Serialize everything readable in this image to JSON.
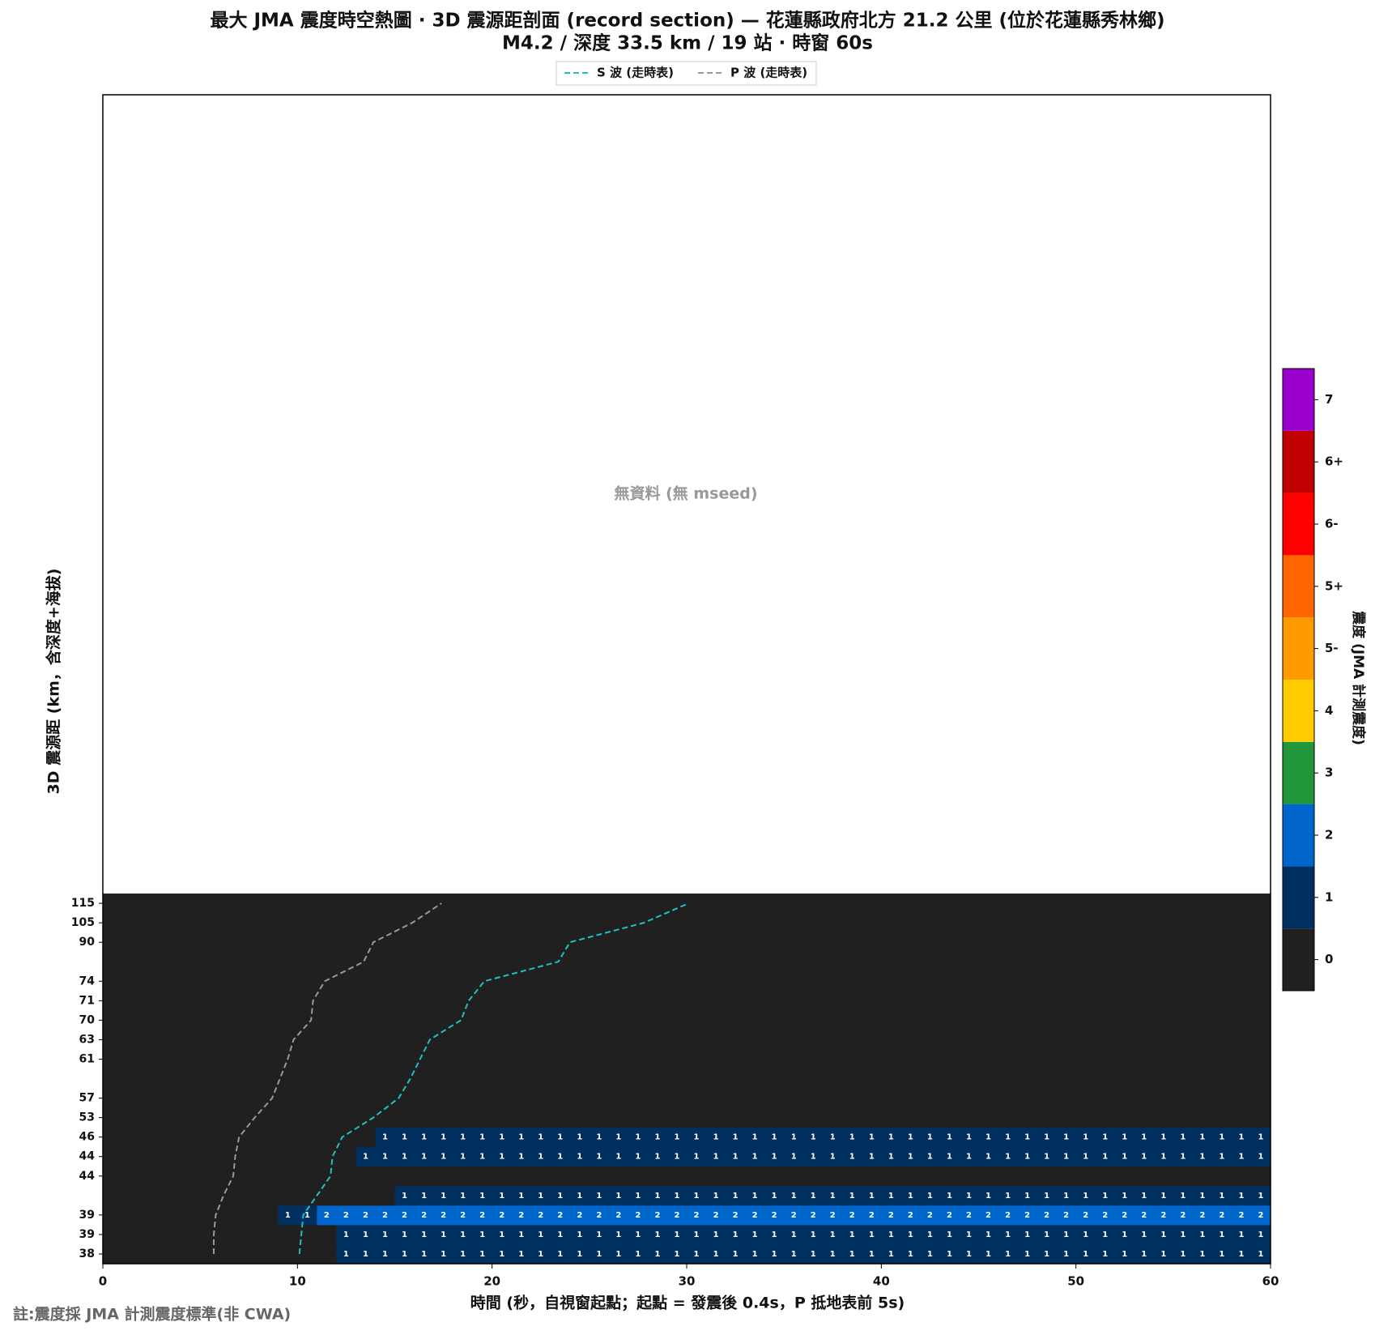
{
  "chart_data": {
    "type": "heatmap",
    "title": "最大 JMA 震度時空熱圖 · 3D 震源距剖面 (record section) — 花蓮縣政府北方  21.2  公里 (位於花蓮縣秀林鄉)",
    "subtitle": "M4.2 / 深度 33.5 km / 19 站 · 時窗 60s",
    "no_data_text": "無資料 (無 mseed)",
    "x_label": "時間 (秒，自視窗起點；起點 = 發震後 0.4s，P 抵地表前 5s)",
    "y_label": "3D 震源距 (km，含深度+海拔)",
    "footnote": "註:震度採 JMA 計測震度標準(非 CWA)",
    "xlim": [
      0,
      60
    ],
    "xticks": [
      0,
      10,
      20,
      30,
      40,
      50,
      60
    ],
    "categories": [
      "38",
      "39",
      "39",
      null,
      "44",
      "44",
      "46",
      "53",
      "57",
      null,
      "61",
      "63",
      "70",
      "71",
      "74",
      null,
      "90",
      "105",
      "115"
    ],
    "matrix": [
      [
        0,
        0,
        0,
        0,
        0,
        0,
        0,
        0,
        0,
        0,
        0,
        0,
        1,
        1,
        1,
        1,
        1,
        1,
        1,
        1,
        1,
        1,
        1,
        1,
        1,
        1,
        1,
        1,
        1,
        1,
        1,
        1,
        1,
        1,
        1,
        1,
        1,
        1,
        1,
        1,
        1,
        1,
        1,
        1,
        1,
        1,
        1,
        1,
        1,
        1,
        1,
        1,
        1,
        1,
        1,
        1,
        1,
        1,
        1,
        1
      ],
      [
        0,
        0,
        0,
        0,
        0,
        0,
        0,
        0,
        0,
        0,
        0,
        0,
        1,
        1,
        1,
        1,
        1,
        1,
        1,
        1,
        1,
        1,
        1,
        1,
        1,
        1,
        1,
        1,
        1,
        1,
        1,
        1,
        1,
        1,
        1,
        1,
        1,
        1,
        1,
        1,
        1,
        1,
        1,
        1,
        1,
        1,
        1,
        1,
        1,
        1,
        1,
        1,
        1,
        1,
        1,
        1,
        1,
        1,
        1,
        1
      ],
      [
        0,
        0,
        0,
        0,
        0,
        0,
        0,
        0,
        0,
        1,
        1,
        2,
        2,
        2,
        2,
        2,
        2,
        2,
        2,
        2,
        2,
        2,
        2,
        2,
        2,
        2,
        2,
        2,
        2,
        2,
        2,
        2,
        2,
        2,
        2,
        2,
        2,
        2,
        2,
        2,
        2,
        2,
        2,
        2,
        2,
        2,
        2,
        2,
        2,
        2,
        2,
        2,
        2,
        2,
        2,
        2,
        2,
        2,
        2,
        2
      ],
      [
        0,
        0,
        0,
        0,
        0,
        0,
        0,
        0,
        0,
        0,
        0,
        0,
        0,
        0,
        0,
        1,
        1,
        1,
        1,
        1,
        1,
        1,
        1,
        1,
        1,
        1,
        1,
        1,
        1,
        1,
        1,
        1,
        1,
        1,
        1,
        1,
        1,
        1,
        1,
        1,
        1,
        1,
        1,
        1,
        1,
        1,
        1,
        1,
        1,
        1,
        1,
        1,
        1,
        1,
        1,
        1,
        1,
        1,
        1,
        1
      ],
      [
        0,
        0,
        0,
        0,
        0,
        0,
        0,
        0,
        0,
        0,
        0,
        0,
        0,
        0,
        0,
        0,
        0,
        0,
        0,
        0,
        0,
        0,
        0,
        0,
        0,
        0,
        0,
        0,
        0,
        0,
        0,
        0,
        0,
        0,
        0,
        0,
        0,
        0,
        0,
        0,
        0,
        0,
        0,
        0,
        0,
        0,
        0,
        0,
        0,
        0,
        0,
        0,
        0,
        0,
        0,
        0,
        0,
        0,
        0,
        0
      ],
      [
        0,
        0,
        0,
        0,
        0,
        0,
        0,
        0,
        0,
        0,
        0,
        0,
        0,
        1,
        1,
        1,
        1,
        1,
        1,
        1,
        1,
        1,
        1,
        1,
        1,
        1,
        1,
        1,
        1,
        1,
        1,
        1,
        1,
        1,
        1,
        1,
        1,
        1,
        1,
        1,
        1,
        1,
        1,
        1,
        1,
        1,
        1,
        1,
        1,
        1,
        1,
        1,
        1,
        1,
        1,
        1,
        1,
        1,
        1,
        1
      ],
      [
        0,
        0,
        0,
        0,
        0,
        0,
        0,
        0,
        0,
        0,
        0,
        0,
        0,
        0,
        1,
        1,
        1,
        1,
        1,
        1,
        1,
        1,
        1,
        1,
        1,
        1,
        1,
        1,
        1,
        1,
        1,
        1,
        1,
        1,
        1,
        1,
        1,
        1,
        1,
        1,
        1,
        1,
        1,
        1,
        1,
        1,
        1,
        1,
        1,
        1,
        1,
        1,
        1,
        1,
        1,
        1,
        1,
        1,
        1,
        1
      ],
      [
        0,
        0,
        0,
        0,
        0,
        0,
        0,
        0,
        0,
        0,
        0,
        0,
        0,
        0,
        0,
        0,
        0,
        0,
        0,
        0,
        0,
        0,
        0,
        0,
        0,
        0,
        0,
        0,
        0,
        0,
        0,
        0,
        0,
        0,
        0,
        0,
        0,
        0,
        0,
        0,
        0,
        0,
        0,
        0,
        0,
        0,
        0,
        0,
        0,
        0,
        0,
        0,
        0,
        0,
        0,
        0,
        0,
        0,
        0,
        0
      ],
      [
        0,
        0,
        0,
        0,
        0,
        0,
        0,
        0,
        0,
        0,
        0,
        0,
        0,
        0,
        0,
        0,
        0,
        0,
        0,
        0,
        0,
        0,
        0,
        0,
        0,
        0,
        0,
        0,
        0,
        0,
        0,
        0,
        0,
        0,
        0,
        0,
        0,
        0,
        0,
        0,
        0,
        0,
        0,
        0,
        0,
        0,
        0,
        0,
        0,
        0,
        0,
        0,
        0,
        0,
        0,
        0,
        0,
        0,
        0,
        0
      ],
      [
        0,
        0,
        0,
        0,
        0,
        0,
        0,
        0,
        0,
        0,
        0,
        0,
        0,
        0,
        0,
        0,
        0,
        0,
        0,
        0,
        0,
        0,
        0,
        0,
        0,
        0,
        0,
        0,
        0,
        0,
        0,
        0,
        0,
        0,
        0,
        0,
        0,
        0,
        0,
        0,
        0,
        0,
        0,
        0,
        0,
        0,
        0,
        0,
        0,
        0,
        0,
        0,
        0,
        0,
        0,
        0,
        0,
        0,
        0,
        0
      ],
      [
        0,
        0,
        0,
        0,
        0,
        0,
        0,
        0,
        0,
        0,
        0,
        0,
        0,
        0,
        0,
        0,
        0,
        0,
        0,
        0,
        0,
        0,
        0,
        0,
        0,
        0,
        0,
        0,
        0,
        0,
        0,
        0,
        0,
        0,
        0,
        0,
        0,
        0,
        0,
        0,
        0,
        0,
        0,
        0,
        0,
        0,
        0,
        0,
        0,
        0,
        0,
        0,
        0,
        0,
        0,
        0,
        0,
        0,
        0,
        0
      ],
      [
        0,
        0,
        0,
        0,
        0,
        0,
        0,
        0,
        0,
        0,
        0,
        0,
        0,
        0,
        0,
        0,
        0,
        0,
        0,
        0,
        0,
        0,
        0,
        0,
        0,
        0,
        0,
        0,
        0,
        0,
        0,
        0,
        0,
        0,
        0,
        0,
        0,
        0,
        0,
        0,
        0,
        0,
        0,
        0,
        0,
        0,
        0,
        0,
        0,
        0,
        0,
        0,
        0,
        0,
        0,
        0,
        0,
        0,
        0,
        0
      ],
      [
        0,
        0,
        0,
        0,
        0,
        0,
        0,
        0,
        0,
        0,
        0,
        0,
        0,
        0,
        0,
        0,
        0,
        0,
        0,
        0,
        0,
        0,
        0,
        0,
        0,
        0,
        0,
        0,
        0,
        0,
        0,
        0,
        0,
        0,
        0,
        0,
        0,
        0,
        0,
        0,
        0,
        0,
        0,
        0,
        0,
        0,
        0,
        0,
        0,
        0,
        0,
        0,
        0,
        0,
        0,
        0,
        0,
        0,
        0,
        0
      ],
      [
        0,
        0,
        0,
        0,
        0,
        0,
        0,
        0,
        0,
        0,
        0,
        0,
        0,
        0,
        0,
        0,
        0,
        0,
        0,
        0,
        0,
        0,
        0,
        0,
        0,
        0,
        0,
        0,
        0,
        0,
        0,
        0,
        0,
        0,
        0,
        0,
        0,
        0,
        0,
        0,
        0,
        0,
        0,
        0,
        0,
        0,
        0,
        0,
        0,
        0,
        0,
        0,
        0,
        0,
        0,
        0,
        0,
        0,
        0,
        0
      ],
      [
        0,
        0,
        0,
        0,
        0,
        0,
        0,
        0,
        0,
        0,
        0,
        0,
        0,
        0,
        0,
        0,
        0,
        0,
        0,
        0,
        0,
        0,
        0,
        0,
        0,
        0,
        0,
        0,
        0,
        0,
        0,
        0,
        0,
        0,
        0,
        0,
        0,
        0,
        0,
        0,
        0,
        0,
        0,
        0,
        0,
        0,
        0,
        0,
        0,
        0,
        0,
        0,
        0,
        0,
        0,
        0,
        0,
        0,
        0,
        0
      ],
      [
        0,
        0,
        0,
        0,
        0,
        0,
        0,
        0,
        0,
        0,
        0,
        0,
        0,
        0,
        0,
        0,
        0,
        0,
        0,
        0,
        0,
        0,
        0,
        0,
        0,
        0,
        0,
        0,
        0,
        0,
        0,
        0,
        0,
        0,
        0,
        0,
        0,
        0,
        0,
        0,
        0,
        0,
        0,
        0,
        0,
        0,
        0,
        0,
        0,
        0,
        0,
        0,
        0,
        0,
        0,
        0,
        0,
        0,
        0,
        0
      ],
      [
        0,
        0,
        0,
        0,
        0,
        0,
        0,
        0,
        0,
        0,
        0,
        0,
        0,
        0,
        0,
        0,
        0,
        0,
        0,
        0,
        0,
        0,
        0,
        0,
        0,
        0,
        0,
        0,
        0,
        0,
        0,
        0,
        0,
        0,
        0,
        0,
        0,
        0,
        0,
        0,
        0,
        0,
        0,
        0,
        0,
        0,
        0,
        0,
        0,
        0,
        0,
        0,
        0,
        0,
        0,
        0,
        0,
        0,
        0,
        0
      ],
      [
        0,
        0,
        0,
        0,
        0,
        0,
        0,
        0,
        0,
        0,
        0,
        0,
        0,
        0,
        0,
        0,
        0,
        0,
        0,
        0,
        0,
        0,
        0,
        0,
        0,
        0,
        0,
        0,
        0,
        0,
        0,
        0,
        0,
        0,
        0,
        0,
        0,
        0,
        0,
        0,
        0,
        0,
        0,
        0,
        0,
        0,
        0,
        0,
        0,
        0,
        0,
        0,
        0,
        0,
        0,
        0,
        0,
        0,
        0,
        0
      ],
      [
        0,
        0,
        0,
        0,
        0,
        0,
        0,
        0,
        0,
        0,
        0,
        0,
        0,
        0,
        0,
        0,
        0,
        0,
        0,
        0,
        0,
        0,
        0,
        0,
        0,
        0,
        0,
        0,
        0,
        0,
        0,
        0,
        0,
        0,
        0,
        0,
        0,
        0,
        0,
        0,
        0,
        0,
        0,
        0,
        0,
        0,
        0,
        0,
        0,
        0,
        0,
        0,
        0,
        0,
        0,
        0,
        0,
        0,
        0,
        0
      ]
    ],
    "series": [
      {
        "name": "S 波 (走時表)",
        "color": "#20c0c0",
        "values": [
          10.1,
          10.2,
          10.3,
          11.0,
          11.7,
          11.8,
          12.3,
          13.9,
          15.2,
          15.8,
          16.3,
          16.8,
          18.4,
          18.8,
          19.6,
          23.4,
          24.0,
          27.8,
          30.1
        ]
      },
      {
        "name": "P 波 (走時表)",
        "color": "#999999",
        "values": [
          5.7,
          5.7,
          5.8,
          6.2,
          6.7,
          6.8,
          7.0,
          7.8,
          8.7,
          9.1,
          9.5,
          9.8,
          10.7,
          10.8,
          11.4,
          13.4,
          13.9,
          15.9,
          17.4
        ]
      }
    ],
    "colorbar": {
      "label": "震度 (JMA 計測震度)",
      "labels": [
        "0",
        "1",
        "2",
        "3",
        "4",
        "5-",
        "5+",
        "6-",
        "6+",
        "7"
      ],
      "colors": [
        "#202020",
        "#00305f",
        "#0066cc",
        "#22963a",
        "#ffcc00",
        "#ff9900",
        "#ff6600",
        "#ff0000",
        "#c00000",
        "#9900cc"
      ]
    }
  }
}
